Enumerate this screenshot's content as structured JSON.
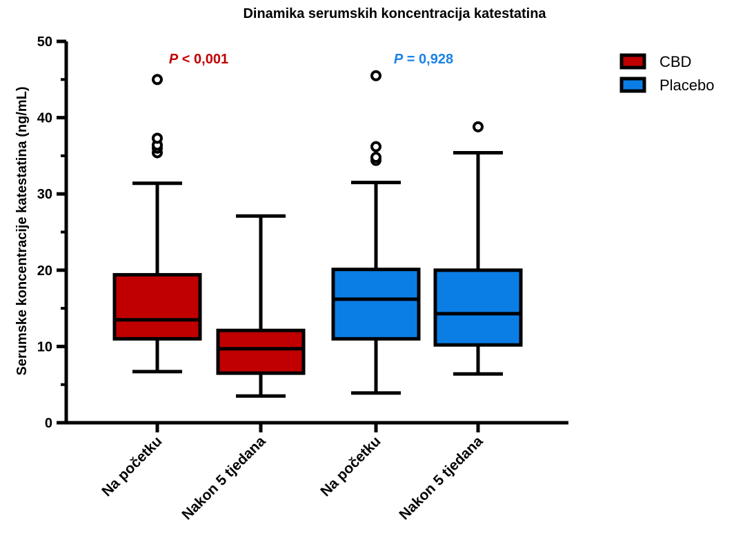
{
  "chart_data": {
    "type": "box",
    "title": "Dinamika serumskih koncentracija katestatina",
    "ylabel": "Serumske koncentracije katestatina (ng/mL)",
    "xlabel": "",
    "ylim": [
      0,
      50
    ],
    "yticks": [
      "0",
      "10",
      "20",
      "30",
      "40",
      "50"
    ],
    "ytick_values": [
      0,
      10,
      20,
      30,
      40,
      50
    ],
    "categories": [
      "Na početku",
      "Nakon 5 tjedana",
      "Na početku",
      "Nakon 5 tjedana"
    ],
    "legend_position": "top-right",
    "series": [
      {
        "name": "CBD",
        "color": "#c00000",
        "boxes": [
          {
            "category": "Na početku",
            "whisker_low": 6.7,
            "q1": 11.0,
            "median": 13.5,
            "q3": 19.4,
            "whisker_high": 31.4,
            "outliers": [
              35.4,
              36.0,
              36.4,
              37.3,
              45.0
            ]
          },
          {
            "category": "Nakon 5 tjedana",
            "whisker_low": 3.5,
            "q1": 6.5,
            "median": 9.7,
            "q3": 12.1,
            "whisker_high": 27.1,
            "outliers": []
          }
        ]
      },
      {
        "name": "Placebo",
        "color": "#0b7ee6",
        "boxes": [
          {
            "category": "Na početku",
            "whisker_low": 3.9,
            "q1": 11.0,
            "median": 16.2,
            "q3": 20.1,
            "whisker_high": 31.5,
            "outliers": [
              34.4,
              34.8,
              36.2,
              45.5
            ]
          },
          {
            "category": "Nakon 5 tjedana",
            "whisker_low": 6.4,
            "q1": 10.2,
            "median": 14.3,
            "q3": 20.0,
            "whisker_high": 35.4,
            "outliers": [
              38.8
            ]
          }
        ]
      }
    ],
    "annotations": [
      {
        "italic": "P",
        "text": " < 0,001",
        "color": "#c00000"
      },
      {
        "italic": "P",
        "text": " = 0,928",
        "color": "#1a82e8"
      }
    ]
  }
}
